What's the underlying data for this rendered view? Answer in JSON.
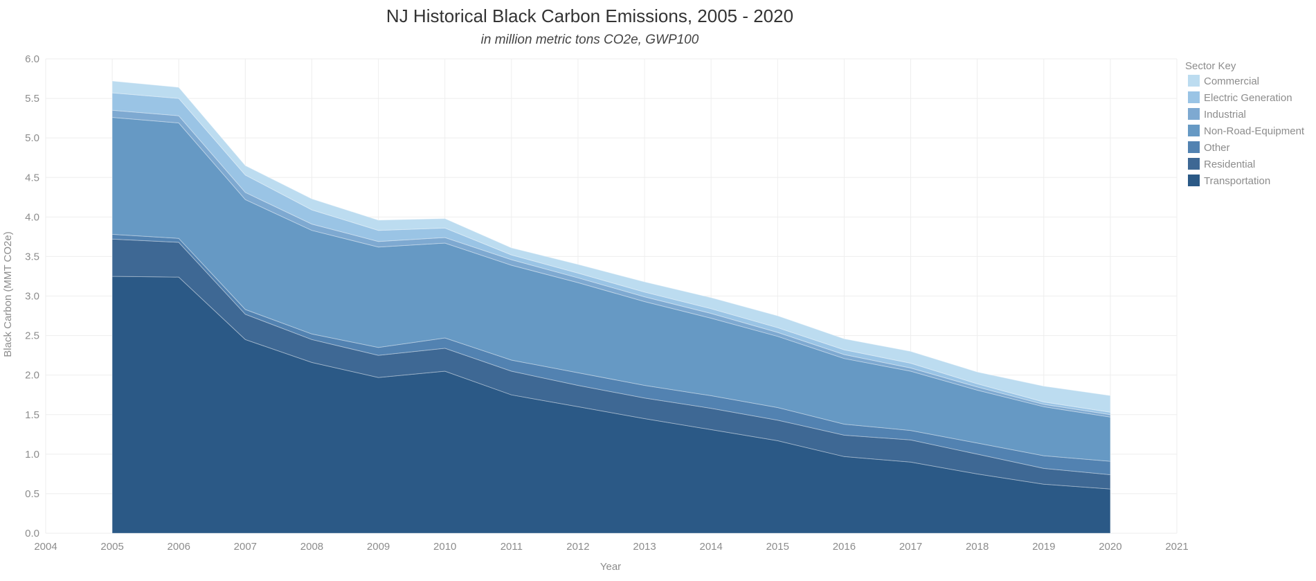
{
  "chart_data": {
    "type": "area",
    "stacked": true,
    "title": "NJ Historical Black Carbon Emissions, 2005 - 2020",
    "subtitle": "in million metric tons CO2e, GWP100",
    "xlabel": "Year",
    "ylabel": "Black Carbon (MMT CO2e)",
    "xlim": [
      2004,
      2021
    ],
    "ylim": [
      0,
      6
    ],
    "x_ticks": [
      "2004",
      "2005",
      "2006",
      "2007",
      "2008",
      "2009",
      "2010",
      "2011",
      "2012",
      "2013",
      "2014",
      "2015",
      "2016",
      "2017",
      "2018",
      "2019",
      "2020",
      "2021"
    ],
    "y_ticks": [
      "0.0",
      "0.5",
      "1.0",
      "1.5",
      "2.0",
      "2.5",
      "3.0",
      "3.5",
      "4.0",
      "4.5",
      "5.0",
      "5.5",
      "6.0"
    ],
    "grid": true,
    "legend": {
      "title": "Sector Key",
      "position": "top-right"
    },
    "x": [
      2005,
      2006,
      2007,
      2008,
      2009,
      2010,
      2011,
      2012,
      2013,
      2014,
      2015,
      2016,
      2017,
      2018,
      2019,
      2020
    ],
    "series": [
      {
        "name": "Transportation",
        "color": "#2b5986",
        "values": [
          3.25,
          3.24,
          2.45,
          2.16,
          1.97,
          2.05,
          1.75,
          1.6,
          1.45,
          1.31,
          1.17,
          0.97,
          0.9,
          0.75,
          0.62,
          0.56
        ]
      },
      {
        "name": "Residential",
        "color": "#3e6894",
        "values": [
          0.47,
          0.44,
          0.32,
          0.29,
          0.28,
          0.29,
          0.3,
          0.27,
          0.26,
          0.27,
          0.26,
          0.27,
          0.28,
          0.25,
          0.2,
          0.18
        ]
      },
      {
        "name": "Other",
        "color": "#5282b1",
        "values": [
          0.06,
          0.05,
          0.06,
          0.07,
          0.1,
          0.13,
          0.14,
          0.16,
          0.16,
          0.16,
          0.16,
          0.14,
          0.12,
          0.14,
          0.16,
          0.17
        ]
      },
      {
        "name": "Non-Road-Equipment",
        "color": "#6699c4",
        "values": [
          1.48,
          1.46,
          1.39,
          1.31,
          1.27,
          1.2,
          1.2,
          1.14,
          1.06,
          0.98,
          0.9,
          0.83,
          0.75,
          0.67,
          0.62,
          0.56
        ]
      },
      {
        "name": "Industrial",
        "color": "#7ea9d1",
        "values": [
          0.09,
          0.09,
          0.09,
          0.08,
          0.07,
          0.07,
          0.07,
          0.06,
          0.06,
          0.06,
          0.05,
          0.05,
          0.04,
          0.04,
          0.03,
          0.03
        ]
      },
      {
        "name": "Electric Generation",
        "color": "#9ac4e5",
        "values": [
          0.22,
          0.22,
          0.22,
          0.18,
          0.14,
          0.12,
          0.06,
          0.06,
          0.06,
          0.06,
          0.06,
          0.06,
          0.06,
          0.04,
          0.03,
          0.03
        ]
      },
      {
        "name": "Commercial",
        "color": "#bcdcf0",
        "values": [
          0.15,
          0.14,
          0.12,
          0.14,
          0.13,
          0.12,
          0.09,
          0.11,
          0.13,
          0.14,
          0.15,
          0.14,
          0.15,
          0.15,
          0.2,
          0.21
        ]
      }
    ]
  }
}
